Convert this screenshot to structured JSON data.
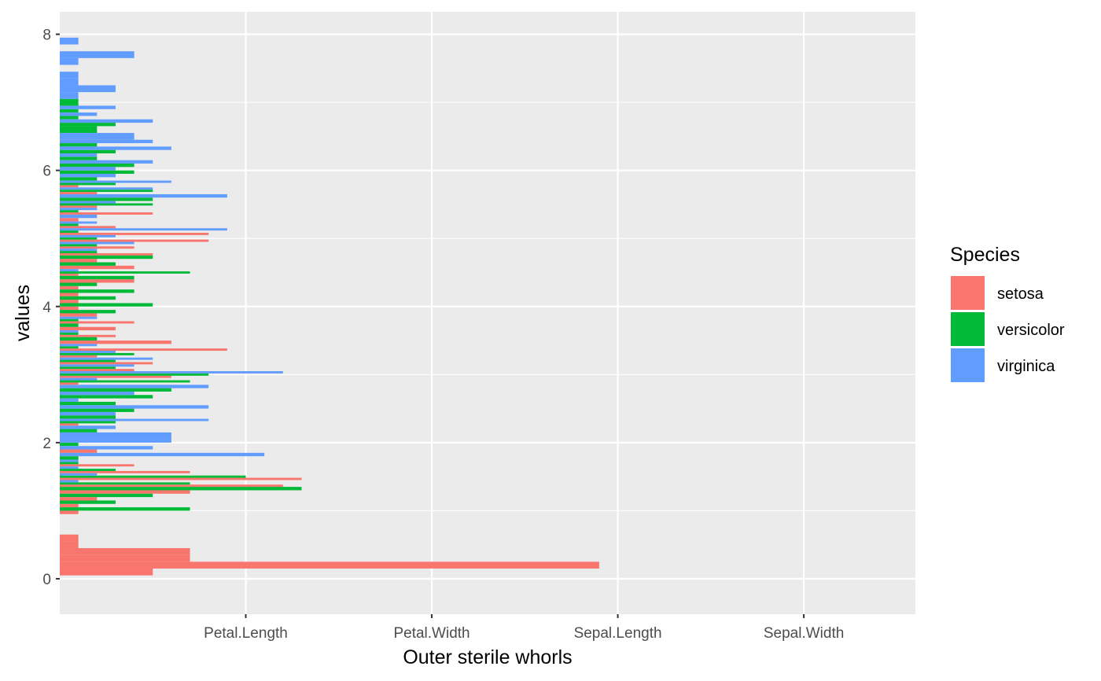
{
  "chart_data": {
    "type": "bar",
    "orientation": "horizontal",
    "position": "dodge",
    "xlabel": "Outer sterile whorls",
    "ylabel": "values",
    "x_categories": [
      "Petal.Length",
      "Petal.Width",
      "Sepal.Length",
      "Sepal.Width"
    ],
    "x_range": [
      0,
      46
    ],
    "ylim": [
      -0.52,
      8.33
    ],
    "y_ticks": [
      0,
      2,
      4,
      6,
      8
    ],
    "bin_width": 0.1,
    "grid": true,
    "legend": {
      "title": "Species",
      "position": "right",
      "entries": [
        "setosa",
        "versicolor",
        "virginica"
      ]
    },
    "colors": {
      "setosa": "#F8766D",
      "versicolor": "#00BA38",
      "virginica": "#619CFF",
      "panel": "#EBEBEB",
      "grid": "#FFFFFF",
      "tick": "#333333"
    },
    "series": [
      {
        "name": "setosa",
        "points": [
          {
            "y": 0.1,
            "count": 5
          },
          {
            "y": 0.2,
            "count": 29
          },
          {
            "y": 0.3,
            "count": 7
          },
          {
            "y": 0.4,
            "count": 7
          },
          {
            "y": 0.5,
            "count": 1
          },
          {
            "y": 0.6,
            "count": 1
          },
          {
            "y": 1.0,
            "count": 1
          },
          {
            "y": 1.1,
            "count": 1
          },
          {
            "y": 1.2,
            "count": 2
          },
          {
            "y": 1.3,
            "count": 7
          },
          {
            "y": 1.4,
            "count": 12
          },
          {
            "y": 1.5,
            "count": 13
          },
          {
            "y": 1.6,
            "count": 7
          },
          {
            "y": 1.7,
            "count": 4
          },
          {
            "y": 1.9,
            "count": 2
          },
          {
            "y": 2.3,
            "count": 1
          },
          {
            "y": 2.9,
            "count": 1
          },
          {
            "y": 3.0,
            "count": 6
          },
          {
            "y": 3.1,
            "count": 4
          },
          {
            "y": 3.2,
            "count": 5
          },
          {
            "y": 3.3,
            "count": 2
          },
          {
            "y": 3.4,
            "count": 9
          },
          {
            "y": 3.5,
            "count": 6
          },
          {
            "y": 3.6,
            "count": 3
          },
          {
            "y": 3.7,
            "count": 3
          },
          {
            "y": 3.8,
            "count": 4
          },
          {
            "y": 3.9,
            "count": 2
          },
          {
            "y": 4.0,
            "count": 1
          },
          {
            "y": 4.1,
            "count": 1
          },
          {
            "y": 4.2,
            "count": 1
          },
          {
            "y": 4.3,
            "count": 1
          },
          {
            "y": 4.4,
            "count": 4
          },
          {
            "y": 4.5,
            "count": 1
          },
          {
            "y": 4.6,
            "count": 4
          },
          {
            "y": 4.7,
            "count": 2
          },
          {
            "y": 4.8,
            "count": 5
          },
          {
            "y": 4.9,
            "count": 4
          },
          {
            "y": 5.0,
            "count": 8
          },
          {
            "y": 5.1,
            "count": 8
          },
          {
            "y": 5.2,
            "count": 3
          },
          {
            "y": 5.3,
            "count": 1
          },
          {
            "y": 5.4,
            "count": 5
          },
          {
            "y": 5.5,
            "count": 2
          },
          {
            "y": 5.7,
            "count": 2
          },
          {
            "y": 5.8,
            "count": 1
          }
        ]
      },
      {
        "name": "versicolor",
        "points": [
          {
            "y": 1.0,
            "count": 7
          },
          {
            "y": 1.1,
            "count": 3
          },
          {
            "y": 1.2,
            "count": 5
          },
          {
            "y": 1.3,
            "count": 13
          },
          {
            "y": 1.4,
            "count": 7
          },
          {
            "y": 1.5,
            "count": 10
          },
          {
            "y": 1.6,
            "count": 3
          },
          {
            "y": 1.7,
            "count": 1
          },
          {
            "y": 1.8,
            "count": 1
          },
          {
            "y": 2.0,
            "count": 1
          },
          {
            "y": 2.2,
            "count": 2
          },
          {
            "y": 2.3,
            "count": 3
          },
          {
            "y": 2.4,
            "count": 3
          },
          {
            "y": 2.5,
            "count": 4
          },
          {
            "y": 2.6,
            "count": 3
          },
          {
            "y": 2.7,
            "count": 5
          },
          {
            "y": 2.8,
            "count": 6
          },
          {
            "y": 2.9,
            "count": 7
          },
          {
            "y": 3.0,
            "count": 8
          },
          {
            "y": 3.1,
            "count": 3
          },
          {
            "y": 3.2,
            "count": 3
          },
          {
            "y": 3.3,
            "count": 4
          },
          {
            "y": 3.4,
            "count": 1
          },
          {
            "y": 3.5,
            "count": 2
          },
          {
            "y": 3.6,
            "count": 1
          },
          {
            "y": 3.7,
            "count": 1
          },
          {
            "y": 3.8,
            "count": 1
          },
          {
            "y": 3.9,
            "count": 3
          },
          {
            "y": 4.0,
            "count": 5
          },
          {
            "y": 4.1,
            "count": 3
          },
          {
            "y": 4.2,
            "count": 4
          },
          {
            "y": 4.3,
            "count": 2
          },
          {
            "y": 4.4,
            "count": 4
          },
          {
            "y": 4.5,
            "count": 7
          },
          {
            "y": 4.6,
            "count": 3
          },
          {
            "y": 4.7,
            "count": 5
          },
          {
            "y": 4.8,
            "count": 2
          },
          {
            "y": 4.9,
            "count": 2
          },
          {
            "y": 5.0,
            "count": 2
          },
          {
            "y": 5.1,
            "count": 1
          },
          {
            "y": 5.2,
            "count": 1
          },
          {
            "y": 5.4,
            "count": 1
          },
          {
            "y": 5.5,
            "count": 5
          },
          {
            "y": 5.6,
            "count": 5
          },
          {
            "y": 5.7,
            "count": 5
          },
          {
            "y": 5.8,
            "count": 3
          },
          {
            "y": 5.9,
            "count": 2
          },
          {
            "y": 6.0,
            "count": 4
          },
          {
            "y": 6.1,
            "count": 4
          },
          {
            "y": 6.2,
            "count": 2
          },
          {
            "y": 6.3,
            "count": 3
          },
          {
            "y": 6.4,
            "count": 2
          },
          {
            "y": 6.6,
            "count": 2
          },
          {
            "y": 6.7,
            "count": 3
          },
          {
            "y": 6.8,
            "count": 1
          },
          {
            "y": 6.9,
            "count": 1
          },
          {
            "y": 7.0,
            "count": 1
          }
        ]
      },
      {
        "name": "virginica",
        "points": [
          {
            "y": 1.4,
            "count": 1
          },
          {
            "y": 1.5,
            "count": 2
          },
          {
            "y": 1.6,
            "count": 1
          },
          {
            "y": 1.7,
            "count": 1
          },
          {
            "y": 1.8,
            "count": 11
          },
          {
            "y": 1.9,
            "count": 5
          },
          {
            "y": 2.0,
            "count": 6
          },
          {
            "y": 2.1,
            "count": 6
          },
          {
            "y": 2.2,
            "count": 3
          },
          {
            "y": 2.3,
            "count": 8
          },
          {
            "y": 2.4,
            "count": 3
          },
          {
            "y": 2.5,
            "count": 8
          },
          {
            "y": 2.6,
            "count": 1
          },
          {
            "y": 2.7,
            "count": 4
          },
          {
            "y": 2.8,
            "count": 8
          },
          {
            "y": 2.9,
            "count": 2
          },
          {
            "y": 3.0,
            "count": 12
          },
          {
            "y": 3.1,
            "count": 4
          },
          {
            "y": 3.2,
            "count": 5
          },
          {
            "y": 3.3,
            "count": 3
          },
          {
            "y": 3.4,
            "count": 2
          },
          {
            "y": 3.6,
            "count": 1
          },
          {
            "y": 3.8,
            "count": 2
          },
          {
            "y": 4.5,
            "count": 1
          },
          {
            "y": 4.8,
            "count": 2
          },
          {
            "y": 4.9,
            "count": 4
          },
          {
            "y": 5.0,
            "count": 3
          },
          {
            "y": 5.1,
            "count": 9
          },
          {
            "y": 5.2,
            "count": 2
          },
          {
            "y": 5.3,
            "count": 2
          },
          {
            "y": 5.4,
            "count": 2
          },
          {
            "y": 5.5,
            "count": 3
          },
          {
            "y": 5.6,
            "count": 9
          },
          {
            "y": 5.7,
            "count": 5
          },
          {
            "y": 5.8,
            "count": 6
          },
          {
            "y": 5.9,
            "count": 3
          },
          {
            "y": 6.0,
            "count": 3
          },
          {
            "y": 6.1,
            "count": 5
          },
          {
            "y": 6.2,
            "count": 2
          },
          {
            "y": 6.3,
            "count": 6
          },
          {
            "y": 6.4,
            "count": 5
          },
          {
            "y": 6.5,
            "count": 4
          },
          {
            "y": 6.7,
            "count": 5
          },
          {
            "y": 6.8,
            "count": 2
          },
          {
            "y": 6.9,
            "count": 3
          },
          {
            "y": 7.1,
            "count": 1
          },
          {
            "y": 7.2,
            "count": 3
          },
          {
            "y": 7.3,
            "count": 1
          },
          {
            "y": 7.4,
            "count": 1
          },
          {
            "y": 7.6,
            "count": 1
          },
          {
            "y": 7.7,
            "count": 4
          },
          {
            "y": 7.9,
            "count": 1
          }
        ]
      }
    ]
  }
}
